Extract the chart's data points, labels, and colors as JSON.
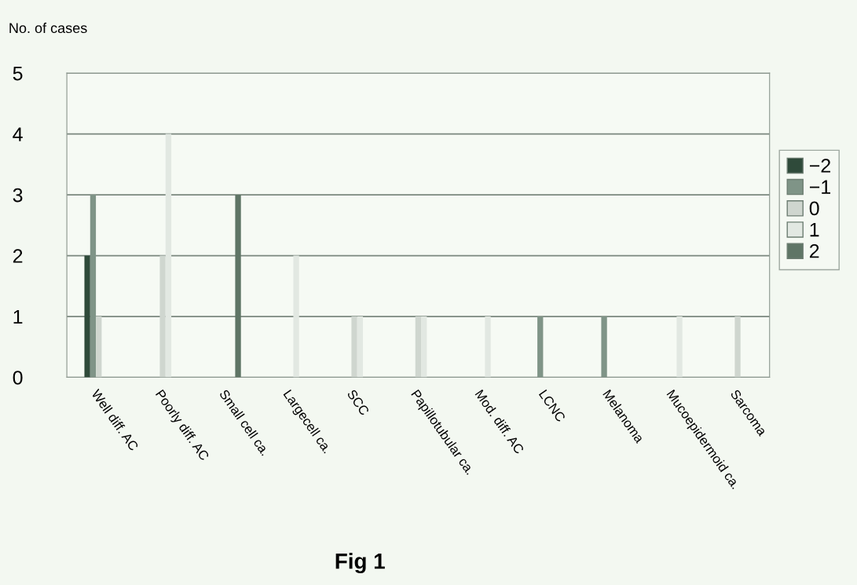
{
  "chart_data": {
    "type": "bar",
    "ylabel": "No. of cases",
    "annotations": [
      "Fig 1"
    ],
    "categories": [
      "Well diff. AC",
      "Poorly diff. AC",
      "Small cell ca.",
      "Largecell ca.",
      "SCC",
      "Papillotubular ca.",
      "Mod. diff. AC",
      "LCNC",
      "Melanoma",
      "Mucoepidermoid ca.",
      "Sarcoma"
    ],
    "series": [
      {
        "name": "−2",
        "color": "#2f4a3a",
        "values": [
          2,
          null,
          null,
          null,
          null,
          null,
          null,
          null,
          null,
          null,
          null
        ]
      },
      {
        "name": "−1",
        "color": "#7f9487",
        "values": [
          3,
          null,
          null,
          null,
          null,
          null,
          null,
          1,
          1,
          null,
          null
        ]
      },
      {
        "name": "0",
        "color": "#cfd6cf",
        "values": [
          1,
          2,
          null,
          null,
          1,
          1,
          null,
          null,
          null,
          null,
          1
        ]
      },
      {
        "name": "1",
        "color": "#e2e8e2",
        "values": [
          null,
          4,
          null,
          2,
          1,
          1,
          1,
          null,
          null,
          1,
          null
        ]
      },
      {
        "name": "2",
        "color": "#5f7566",
        "values": [
          null,
          null,
          3,
          null,
          null,
          null,
          null,
          null,
          null,
          null,
          null
        ]
      }
    ],
    "ylim": [
      0,
      5
    ],
    "yticks": [
      0,
      1,
      2,
      3,
      4,
      5
    ],
    "grid": "y",
    "legend": "right"
  }
}
